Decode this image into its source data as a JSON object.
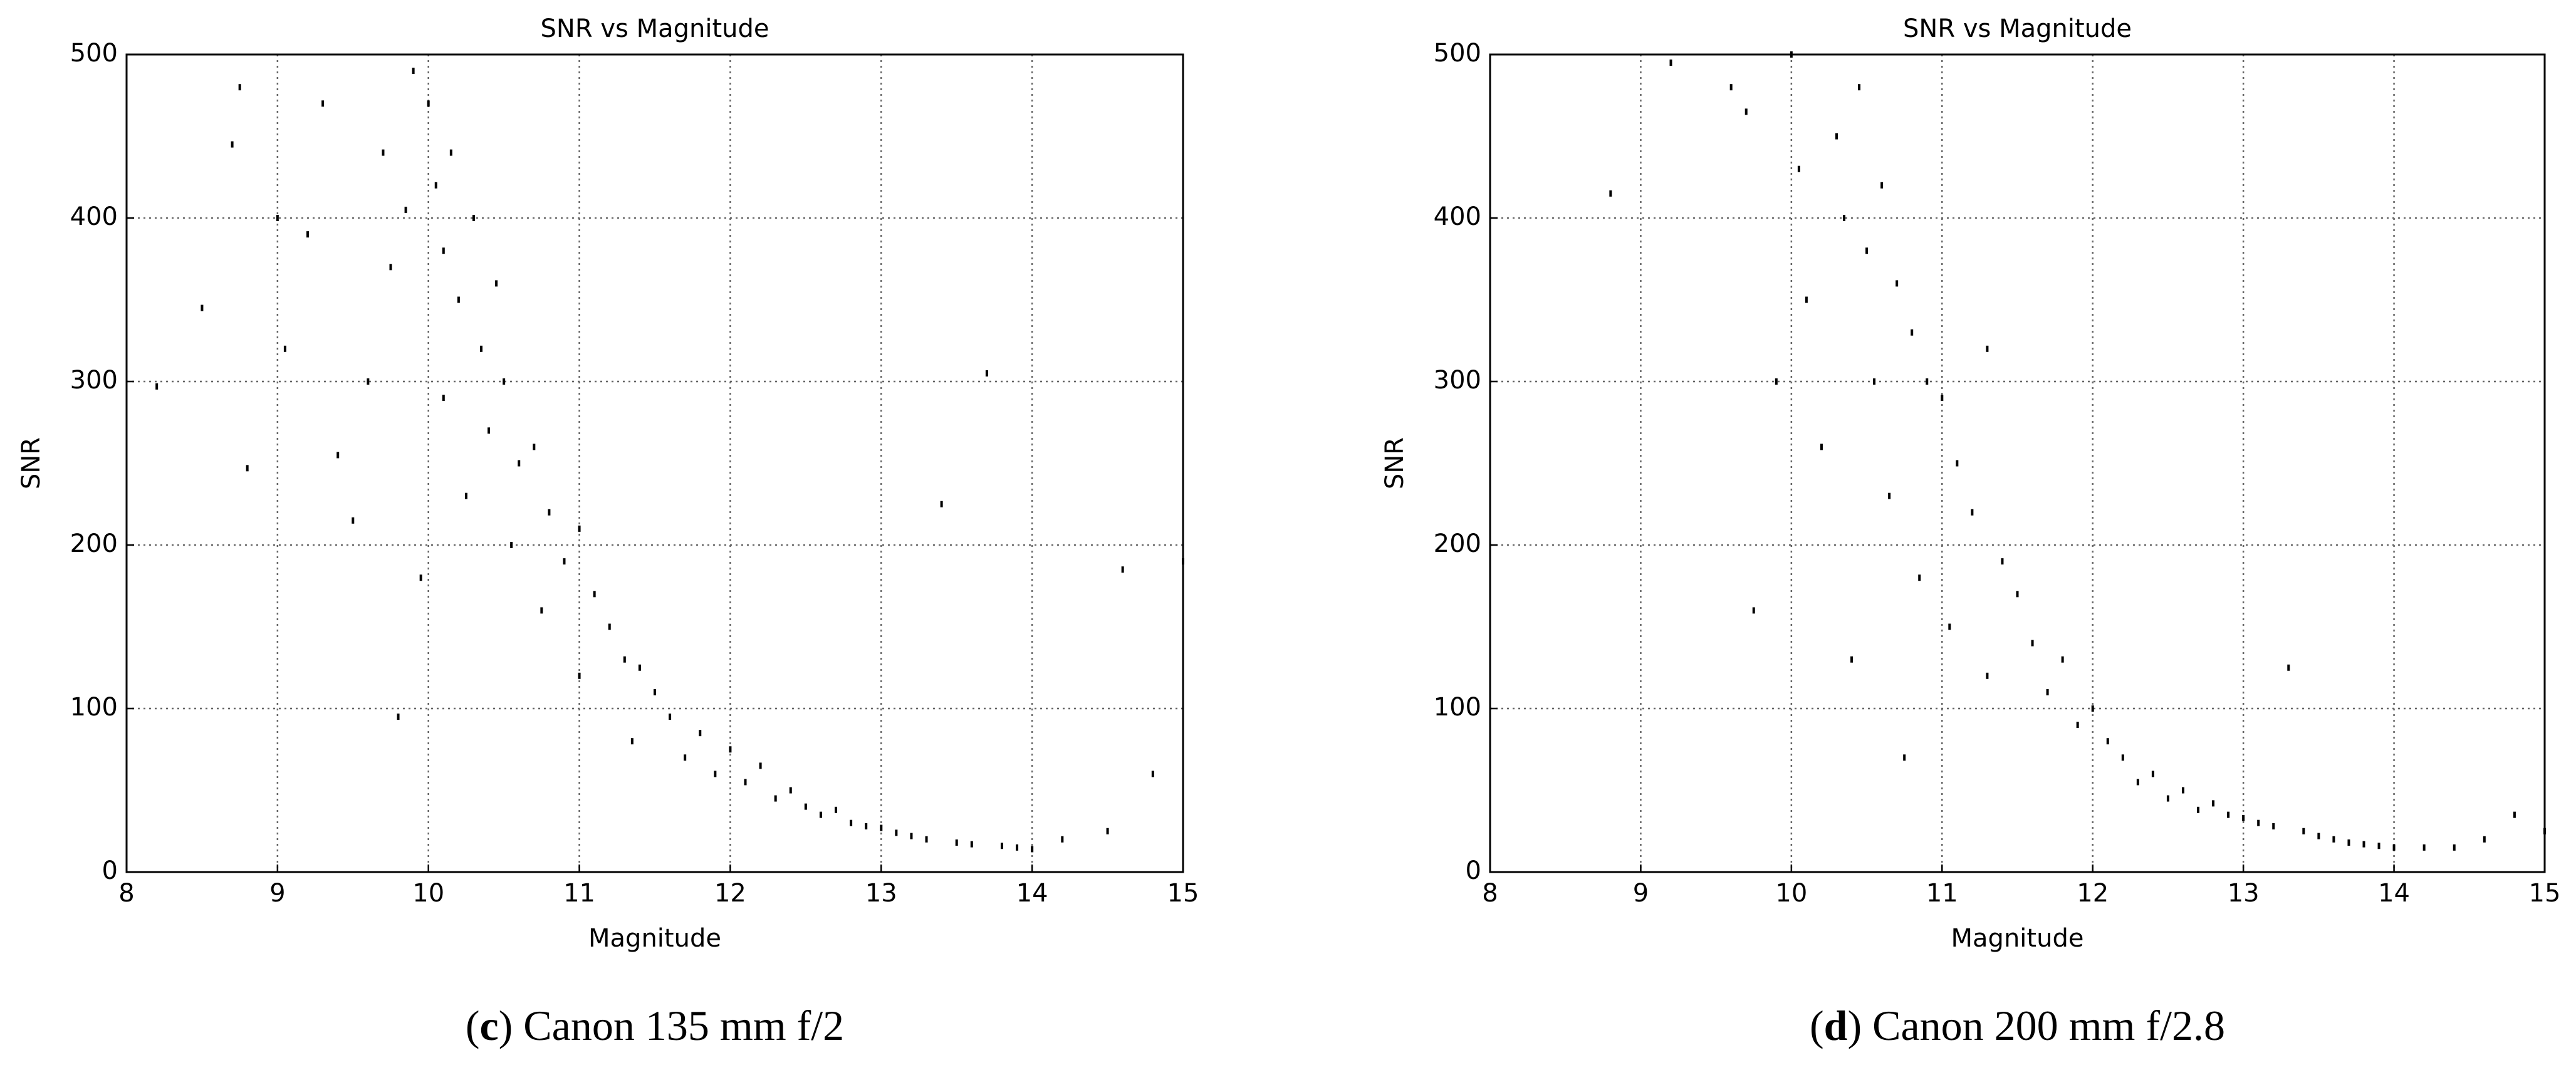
{
  "chart_data": [
    {
      "type": "scatter",
      "title": "SNR vs Magnitude",
      "xlabel": "Magnitude",
      "ylabel": "SNR",
      "caption_parts": [
        "(",
        "c",
        ") Canon 135 mm f/2"
      ],
      "xlim": [
        8,
        15
      ],
      "ylim": [
        0,
        500
      ],
      "xticks": [
        8,
        9,
        10,
        11,
        12,
        13,
        14,
        15
      ],
      "yticks": [
        0,
        100,
        200,
        300,
        400,
        500
      ],
      "grid": true,
      "color": "#000000",
      "x": [
        8.2,
        8.5,
        8.7,
        8.75,
        8.8,
        9.0,
        9.05,
        9.2,
        9.3,
        9.4,
        9.5,
        9.6,
        9.7,
        9.75,
        9.8,
        9.85,
        9.9,
        9.95,
        10.0,
        10.05,
        10.1,
        10.1,
        10.15,
        10.2,
        10.25,
        10.3,
        10.35,
        10.4,
        10.45,
        10.5,
        10.55,
        10.6,
        10.7,
        10.75,
        10.8,
        10.9,
        11.0,
        11.0,
        11.1,
        11.2,
        11.3,
        11.35,
        11.4,
        11.5,
        11.6,
        11.7,
        11.8,
        11.9,
        12.0,
        12.1,
        12.2,
        12.3,
        12.4,
        12.5,
        12.6,
        12.7,
        12.8,
        12.9,
        13.0,
        13.1,
        13.2,
        13.3,
        13.4,
        13.5,
        13.6,
        13.7,
        13.8,
        13.9,
        14.0,
        14.2,
        14.5,
        14.6,
        14.8,
        15.0
      ],
      "y": [
        297,
        345,
        445,
        480,
        247,
        400,
        320,
        390,
        470,
        255,
        215,
        300,
        440,
        370,
        95,
        405,
        490,
        180,
        470,
        420,
        380,
        290,
        440,
        350,
        230,
        400,
        320,
        270,
        360,
        300,
        200,
        250,
        260,
        160,
        220,
        190,
        210,
        120,
        170,
        150,
        130,
        80,
        125,
        110,
        95,
        70,
        85,
        60,
        75,
        55,
        65,
        45,
        50,
        40,
        35,
        38,
        30,
        28,
        27,
        24,
        22,
        20,
        225,
        18,
        17,
        305,
        16,
        15,
        14,
        20,
        25,
        185,
        60,
        190
      ]
    },
    {
      "type": "scatter",
      "title": "SNR vs Magnitude",
      "xlabel": "Magnitude",
      "ylabel": "SNR",
      "caption_parts": [
        "(",
        "d",
        ") Canon 200 mm f/2.8"
      ],
      "xlim": [
        8,
        15
      ],
      "ylim": [
        0,
        500
      ],
      "xticks": [
        8,
        9,
        10,
        11,
        12,
        13,
        14,
        15
      ],
      "yticks": [
        0,
        100,
        200,
        300,
        400,
        500
      ],
      "grid": true,
      "color": "#000000",
      "x": [
        8.8,
        9.2,
        9.6,
        9.7,
        9.75,
        9.9,
        10.0,
        10.05,
        10.1,
        10.2,
        10.3,
        10.35,
        10.4,
        10.45,
        10.5,
        10.55,
        10.6,
        10.65,
        10.7,
        10.75,
        10.8,
        10.85,
        10.9,
        11.0,
        11.05,
        11.1,
        11.2,
        11.3,
        11.3,
        11.4,
        11.5,
        11.6,
        11.7,
        11.8,
        11.9,
        12.0,
        12.1,
        12.2,
        12.3,
        12.4,
        12.5,
        12.6,
        12.7,
        12.8,
        12.9,
        13.0,
        13.1,
        13.2,
        13.3,
        13.4,
        13.5,
        13.6,
        13.7,
        13.8,
        13.9,
        14.0,
        14.2,
        14.4,
        14.6,
        14.8,
        15.0
      ],
      "y": [
        415,
        495,
        480,
        465,
        160,
        300,
        500,
        430,
        350,
        260,
        450,
        400,
        130,
        480,
        380,
        300,
        420,
        230,
        360,
        70,
        330,
        180,
        300,
        290,
        150,
        250,
        220,
        320,
        120,
        190,
        170,
        140,
        110,
        130,
        90,
        100,
        80,
        70,
        55,
        60,
        45,
        50,
        38,
        42,
        35,
        33,
        30,
        28,
        125,
        25,
        22,
        20,
        18,
        17,
        16,
        15,
        15,
        15,
        20,
        35,
        25
      ]
    }
  ]
}
